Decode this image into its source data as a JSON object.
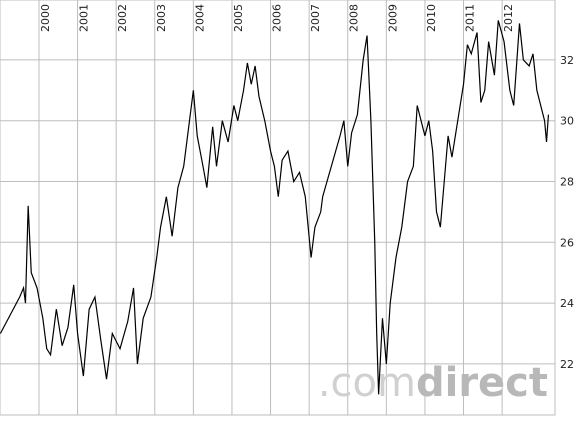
{
  "chart_data": {
    "type": "line",
    "x": [
      1999.0,
      1999.5,
      1999.6,
      1999.65,
      1999.72,
      1999.8,
      1999.95,
      2000.1,
      2000.2,
      2000.3,
      2000.45,
      2000.6,
      2000.75,
      2000.9,
      2001.0,
      2001.15,
      2001.3,
      2001.45,
      2001.6,
      2001.75,
      2001.9,
      2002.1,
      2002.3,
      2002.45,
      2002.55,
      2002.7,
      2002.9,
      2003.05,
      2003.15,
      2003.3,
      2003.45,
      2003.6,
      2003.75,
      2003.9,
      2004.0,
      2004.1,
      2004.25,
      2004.35,
      2004.5,
      2004.6,
      2004.75,
      2004.9,
      2005.05,
      2005.15,
      2005.3,
      2005.4,
      2005.5,
      2005.6,
      2005.7,
      2005.85,
      2006.0,
      2006.1,
      2006.2,
      2006.3,
      2006.45,
      2006.6,
      2006.75,
      2006.9,
      2007.05,
      2007.15,
      2007.3,
      2007.35,
      2007.8,
      2007.9,
      2008.0,
      2008.1,
      2008.25,
      2008.4,
      2008.5,
      2008.6,
      2008.7,
      2008.75,
      2008.8,
      2008.9,
      2009.0,
      2009.1,
      2009.25,
      2009.4,
      2009.55,
      2009.7,
      2009.8,
      2010.0,
      2010.1,
      2010.2,
      2010.3,
      2010.4,
      2010.5,
      2010.6,
      2010.7,
      2010.85,
      2011.0,
      2011.1,
      2011.2,
      2011.35,
      2011.45,
      2011.55,
      2011.65,
      2011.8,
      2011.9,
      2012.05,
      2012.2,
      2012.3,
      2012.45,
      2012.55,
      2012.7,
      2012.8,
      2012.9,
      2013.0,
      2013.1,
      2013.15,
      2013.2
    ],
    "series": [
      {
        "color": "#000000",
        "values": [
          23.0,
          24.2,
          24.5,
          24.0,
          27.2,
          25.0,
          24.5,
          23.5,
          22.5,
          22.3,
          23.8,
          22.6,
          23.2,
          24.6,
          23.0,
          21.6,
          23.8,
          24.2,
          22.8,
          21.5,
          23.0,
          22.5,
          23.4,
          24.5,
          22.0,
          23.5,
          24.2,
          25.5,
          26.5,
          27.5,
          26.2,
          27.8,
          28.5,
          30.0,
          31.0,
          29.5,
          28.5,
          27.8,
          29.8,
          28.5,
          30.0,
          29.3,
          30.5,
          30.0,
          31.0,
          31.9,
          31.2,
          31.8,
          30.8,
          30.0,
          29.0,
          28.5,
          27.5,
          28.7,
          29.0,
          28.0,
          28.3,
          27.5,
          25.5,
          26.5,
          27.0,
          27.5,
          29.5,
          30.0,
          28.5,
          29.6,
          30.2,
          32.0,
          32.8,
          30.0,
          26.0,
          23.0,
          21.0,
          23.5,
          22.0,
          24.0,
          25.5,
          26.5,
          28.0,
          28.5,
          30.5,
          29.5,
          30.0,
          29.0,
          27.0,
          26.5,
          28.0,
          29.5,
          28.8,
          30.0,
          31.2,
          32.5,
          32.2,
          32.9,
          30.6,
          31.0,
          32.6,
          31.5,
          33.3,
          32.6,
          31.0,
          30.5,
          33.2,
          32.0,
          31.8,
          32.2,
          31.0,
          30.5,
          30.0,
          29.3,
          30.2
        ]
      }
    ],
    "xlim": [
      1998.99,
      2013.37
    ],
    "xticks": [
      2000,
      2001,
      2002,
      2003,
      2004,
      2005,
      2006,
      2007,
      2008,
      2009,
      2010,
      2011,
      2012
    ],
    "ylim": [
      20.32,
      33.97
    ],
    "yticks": [
      22,
      24,
      26,
      28,
      30,
      32
    ],
    "grid": true,
    "watermark": {
      "prefix": ".com",
      "suffix": "direct"
    }
  }
}
